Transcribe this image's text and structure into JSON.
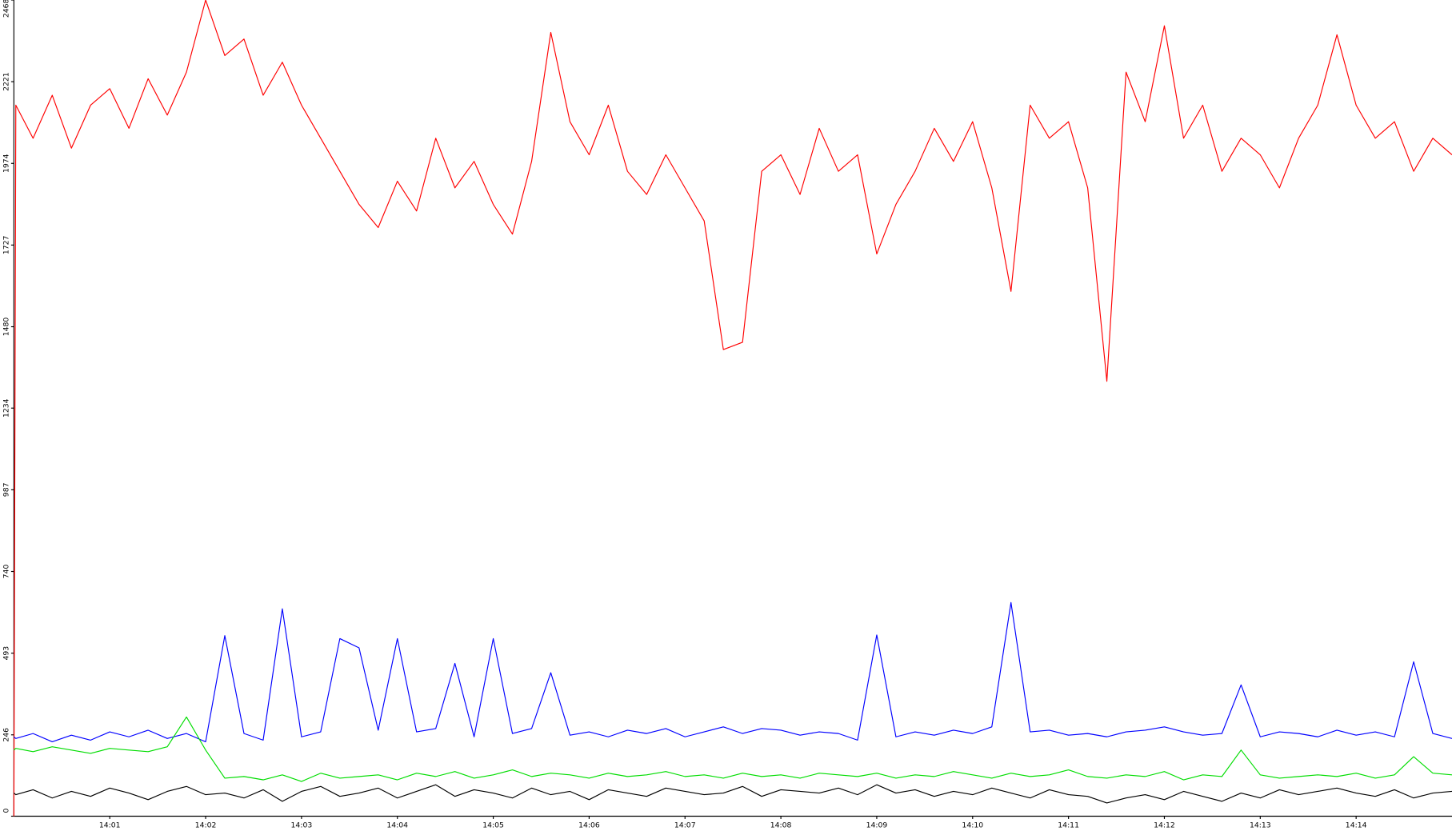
{
  "chart_data": {
    "type": "line",
    "x": [
      840,
      840.02,
      840.2,
      840.4,
      840.6,
      840.8,
      841,
      841.2,
      841.4,
      841.6,
      841.8,
      842,
      842.2,
      842.4,
      842.6,
      842.8,
      843,
      843.2,
      843.4,
      843.6,
      843.8,
      844,
      844.2,
      844.4,
      844.6,
      844.8,
      845,
      845.2,
      845.4,
      845.6,
      845.8,
      846,
      846.2,
      846.4,
      846.6,
      846.8,
      847,
      847.2,
      847.4,
      847.6,
      847.8,
      848,
      848.2,
      848.4,
      848.6,
      848.8,
      849,
      849.2,
      849.4,
      849.6,
      849.8,
      850,
      850.2,
      850.4,
      850.6,
      850.8,
      851,
      851.2,
      851.4,
      851.6,
      851.8,
      852,
      852.2,
      852.4,
      852.6,
      852.8,
      853,
      853.2,
      853.4,
      853.6,
      853.8,
      854,
      854.2,
      854.4,
      854.6,
      854.8,
      855
    ],
    "series": [
      {
        "color": "#ff0000",
        "values": [
          0,
          2150,
          2050,
          2180,
          2020,
          2150,
          2200,
          2080,
          2230,
          2120,
          2250,
          2468,
          2300,
          2350,
          2180,
          2280,
          2150,
          2050,
          1950,
          1850,
          1780,
          1920,
          1830,
          2050,
          1900,
          1980,
          1850,
          1760,
          1980,
          2370,
          2100,
          2000,
          2150,
          1950,
          1880,
          2000,
          1900,
          1800,
          1411,
          1433,
          1950,
          2000,
          1880,
          2080,
          1950,
          2000,
          1700,
          1850,
          1950,
          2080,
          1980,
          2100,
          1900,
          1587,
          2150,
          2050,
          2100,
          1900,
          1315,
          2250,
          2100,
          2390,
          2050,
          2150,
          1950,
          2050,
          2000,
          1900,
          2050,
          2150,
          2363,
          2150,
          2050,
          2100,
          1950,
          2050,
          2000
        ]
      },
      {
        "color": "#0000ff",
        "values": [
          240,
          235,
          250,
          225,
          245,
          230,
          255,
          240,
          260,
          235,
          250,
          225,
          546,
          250,
          230,
          627,
          240,
          255,
          537,
          509,
          260,
          537,
          255,
          265,
          462,
          240,
          537,
          250,
          265,
          434,
          245,
          255,
          240,
          260,
          250,
          265,
          240,
          255,
          270,
          250,
          265,
          260,
          245,
          255,
          250,
          230,
          548,
          240,
          255,
          245,
          260,
          250,
          270,
          646,
          255,
          260,
          245,
          250,
          240,
          255,
          260,
          270,
          255,
          245,
          250,
          397,
          240,
          255,
          250,
          240,
          260,
          245,
          255,
          240,
          467,
          250,
          235
        ]
      },
      {
        "color": "#00dd00",
        "values": [
          200,
          205,
          195,
          210,
          200,
          190,
          205,
          200,
          195,
          210,
          300,
          200,
          115,
          120,
          110,
          125,
          105,
          130,
          115,
          120,
          125,
          110,
          130,
          120,
          135,
          115,
          125,
          140,
          120,
          130,
          125,
          115,
          130,
          120,
          125,
          135,
          120,
          125,
          115,
          130,
          120,
          125,
          115,
          130,
          125,
          120,
          130,
          115,
          125,
          120,
          135,
          125,
          115,
          130,
          120,
          125,
          140,
          120,
          115,
          125,
          120,
          135,
          110,
          125,
          120,
          200,
          125,
          115,
          120,
          125,
          120,
          130,
          115,
          125,
          180,
          130,
          125
        ]
      },
      {
        "color": "#000000",
        "values": [
          70,
          65,
          80,
          55,
          75,
          60,
          85,
          70,
          50,
          75,
          90,
          65,
          70,
          55,
          80,
          45,
          75,
          90,
          60,
          70,
          85,
          55,
          75,
          95,
          60,
          80,
          70,
          55,
          85,
          65,
          75,
          50,
          80,
          70,
          60,
          85,
          75,
          65,
          70,
          90,
          60,
          80,
          75,
          70,
          85,
          65,
          95,
          70,
          80,
          60,
          75,
          65,
          85,
          70,
          55,
          80,
          65,
          60,
          40,
          55,
          65,
          50,
          75,
          60,
          45,
          70,
          55,
          80,
          65,
          75,
          85,
          70,
          60,
          80,
          55,
          70,
          75
        ]
      }
    ],
    "xlim": [
      840,
      855
    ],
    "xticks": [
      {
        "value": 841,
        "label": "14:01"
      },
      {
        "value": 842,
        "label": "14:02"
      },
      {
        "value": 843,
        "label": "14:03"
      },
      {
        "value": 844,
        "label": "14:04"
      },
      {
        "value": 845,
        "label": "14:05"
      },
      {
        "value": 846,
        "label": "14:06"
      },
      {
        "value": 847,
        "label": "14:07"
      },
      {
        "value": 848,
        "label": "14:08"
      },
      {
        "value": 849,
        "label": "14:09"
      },
      {
        "value": 850,
        "label": "14:10"
      },
      {
        "value": 851,
        "label": "14:11"
      },
      {
        "value": 852,
        "label": "14:12"
      },
      {
        "value": 853,
        "label": "14:13"
      },
      {
        "value": 854,
        "label": "14:14"
      }
    ],
    "ylim": [
      0,
      2468
    ],
    "yticks": [
      0,
      246,
      493,
      740,
      987,
      1234,
      1480,
      1727,
      1974,
      2221,
      2468
    ],
    "grid": false
  }
}
